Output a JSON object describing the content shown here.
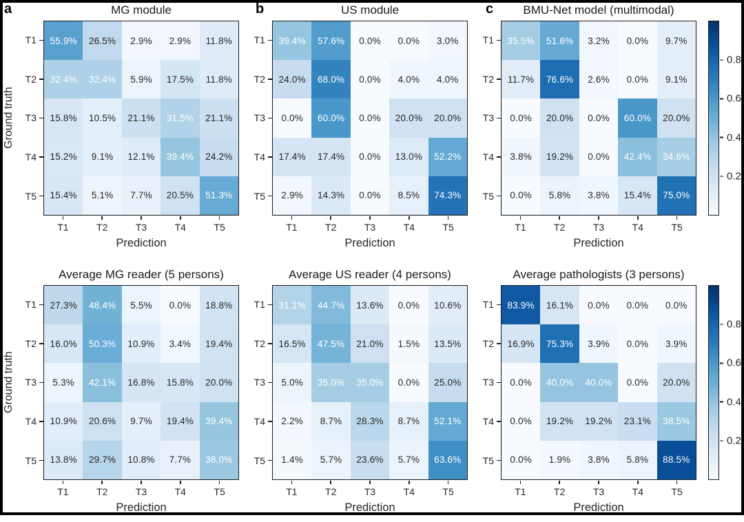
{
  "figure": {
    "background": "#ffffff",
    "frame_color": "#000000"
  },
  "panel_letters": [
    "a",
    "b",
    "c"
  ],
  "axis": {
    "x_label": "Prediction",
    "y_label": "Ground truth",
    "tick_labels": [
      "T1",
      "T2",
      "T3",
      "T4",
      "T5"
    ]
  },
  "colorbar": {
    "ticks": [
      0.8,
      0.6,
      0.4,
      0.2
    ]
  },
  "colormap": {
    "name": "Blues",
    "vmin": 0,
    "vmax": 1,
    "stops": [
      "#f7fbff",
      "#deebf7",
      "#c6dbef",
      "#9ecae1",
      "#6baed6",
      "#4292c6",
      "#2171b5",
      "#08519c",
      "#08306b"
    ],
    "white_text_threshold_percent": 30.5,
    "dark_text_color": "#262626",
    "light_text_color": "#ffffff"
  },
  "chart_data": [
    {
      "type": "heatmap",
      "panel_letter": "a",
      "title": "MG module",
      "xlabel": "Prediction",
      "ylabel": "Ground truth",
      "x_categories": [
        "T1",
        "T2",
        "T3",
        "T4",
        "T5"
      ],
      "y_categories": [
        "T1",
        "T2",
        "T3",
        "T4",
        "T5"
      ],
      "values_percent": [
        [
          55.9,
          26.5,
          2.9,
          2.9,
          11.8
        ],
        [
          32.4,
          32.4,
          5.9,
          17.5,
          11.8
        ],
        [
          15.8,
          10.5,
          21.1,
          31.5,
          21.1
        ],
        [
          15.2,
          9.1,
          12.1,
          39.4,
          24.2
        ],
        [
          15.4,
          5.1,
          7.7,
          20.5,
          51.3
        ]
      ],
      "colormap": "Blues",
      "vmin": 0,
      "vmax": 1,
      "colorbar": false
    },
    {
      "type": "heatmap",
      "panel_letter": "b",
      "title": "US module",
      "xlabel": "Prediction",
      "x_categories": [
        "T1",
        "T2",
        "T3",
        "T4",
        "T5"
      ],
      "y_categories": [
        "T1",
        "T2",
        "T3",
        "T4",
        "T5"
      ],
      "values_percent": [
        [
          39.4,
          57.6,
          0.0,
          0.0,
          3.0
        ],
        [
          24.0,
          68.0,
          0.0,
          4.0,
          4.0
        ],
        [
          0.0,
          60.0,
          0.0,
          20.0,
          20.0
        ],
        [
          17.4,
          17.4,
          0.0,
          13.0,
          52.2
        ],
        [
          2.9,
          14.3,
          0.0,
          8.5,
          74.3
        ]
      ],
      "colormap": "Blues",
      "vmin": 0,
      "vmax": 1,
      "colorbar": false
    },
    {
      "type": "heatmap",
      "panel_letter": "c",
      "title": "BMU-Net model (multimodal)",
      "xlabel": "Prediction",
      "x_categories": [
        "T1",
        "T2",
        "T3",
        "T4",
        "T5"
      ],
      "y_categories": [
        "T1",
        "T2",
        "T3",
        "T4",
        "T5"
      ],
      "values_percent": [
        [
          35.5,
          51.6,
          3.2,
          0.0,
          9.7
        ],
        [
          11.7,
          76.6,
          2.6,
          0.0,
          9.1
        ],
        [
          0.0,
          20.0,
          0.0,
          60.0,
          20.0
        ],
        [
          3.8,
          19.2,
          0.0,
          42.4,
          34.6
        ],
        [
          0.0,
          5.8,
          3.8,
          15.4,
          75.0
        ]
      ],
      "colormap": "Blues",
      "vmin": 0,
      "vmax": 1,
      "colorbar": true
    },
    {
      "type": "heatmap",
      "title": "Average MG reader (5 persons)",
      "xlabel": "Prediction",
      "ylabel": "Ground truth",
      "x_categories": [
        "T1",
        "T2",
        "T3",
        "T4",
        "T5"
      ],
      "y_categories": [
        "T1",
        "T2",
        "T3",
        "T4",
        "T5"
      ],
      "values_percent": [
        [
          27.3,
          48.4,
          5.5,
          0.0,
          18.8
        ],
        [
          16.0,
          50.3,
          10.9,
          3.4,
          19.4
        ],
        [
          5.3,
          42.1,
          16.8,
          15.8,
          20.0
        ],
        [
          10.9,
          20.6,
          9.7,
          19.4,
          39.4
        ],
        [
          13.8,
          29.7,
          10.8,
          7.7,
          38.0
        ]
      ],
      "colormap": "Blues",
      "vmin": 0,
      "vmax": 1,
      "colorbar": false
    },
    {
      "type": "heatmap",
      "title": "Average US reader (4 persons)",
      "xlabel": "Prediction",
      "x_categories": [
        "T1",
        "T2",
        "T3",
        "T4",
        "T5"
      ],
      "y_categories": [
        "T1",
        "T2",
        "T3",
        "T4",
        "T5"
      ],
      "values_percent": [
        [
          31.1,
          44.7,
          13.6,
          0.0,
          10.6
        ],
        [
          16.5,
          47.5,
          21.0,
          1.5,
          13.5
        ],
        [
          5.0,
          35.0,
          35.0,
          0.0,
          25.0
        ],
        [
          2.2,
          8.7,
          28.3,
          8.7,
          52.1
        ],
        [
          1.4,
          5.7,
          23.6,
          5.7,
          63.6
        ]
      ],
      "colormap": "Blues",
      "vmin": 0,
      "vmax": 1,
      "colorbar": false
    },
    {
      "type": "heatmap",
      "title": "Average pathologists (3 persons)",
      "xlabel": "Prediction",
      "x_categories": [
        "T1",
        "T2",
        "T3",
        "T4",
        "T5"
      ],
      "y_categories": [
        "T1",
        "T2",
        "T3",
        "T4",
        "T5"
      ],
      "values_percent": [
        [
          83.9,
          16.1,
          0.0,
          0.0,
          0.0
        ],
        [
          16.9,
          75.3,
          3.9,
          0.0,
          3.9
        ],
        [
          0.0,
          40.0,
          40.0,
          0.0,
          20.0
        ],
        [
          0.0,
          19.2,
          19.2,
          23.1,
          38.5
        ],
        [
          0.0,
          1.9,
          3.8,
          5.8,
          88.5
        ]
      ],
      "colormap": "Blues",
      "vmin": 0,
      "vmax": 1,
      "colorbar": true
    }
  ]
}
